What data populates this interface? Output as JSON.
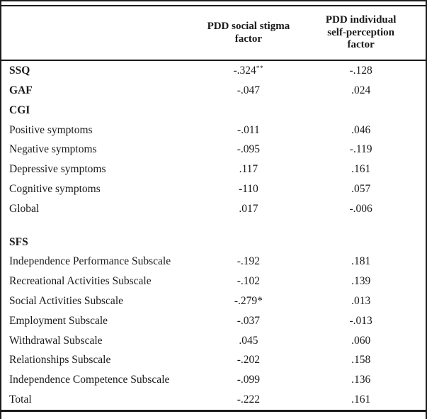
{
  "meta": {
    "background_color": "#ffffff",
    "border_color": "#1c1c1c",
    "text_color": "#1a1a1a"
  },
  "table": {
    "header": {
      "measure_col": "",
      "col1": "PDD social stigma\nfactor",
      "col2": "PDD individual\nself-perception\nfactor"
    },
    "rows": [
      {
        "label": "SSQ",
        "bold": true,
        "v1": "-.324",
        "v1_sup": "**",
        "v2": "-.128"
      },
      {
        "label": "GAF",
        "bold": true,
        "v1": "-.047",
        "v1_sup": "",
        "v2": ".024"
      },
      {
        "label": "CGI",
        "bold": true,
        "v1": "",
        "v1_sup": "",
        "v2": ""
      },
      {
        "label": "Positive symptoms",
        "bold": false,
        "v1": "-.011",
        "v1_sup": "",
        "v2": ".046"
      },
      {
        "label": "Negative symptoms",
        "bold": false,
        "v1": "-.095",
        "v1_sup": "",
        "v2": "-.119"
      },
      {
        "label": "Depressive symptoms",
        "bold": false,
        "v1": ".117",
        "v1_sup": "",
        "v2": ".161"
      },
      {
        "label": "Cognitive symptoms",
        "bold": false,
        "v1": "-110",
        "v1_sup": "",
        "v2": ".057"
      },
      {
        "label": "Global",
        "bold": false,
        "v1": ".017",
        "v1_sup": "",
        "v2": "-.006"
      },
      {
        "label": "",
        "bold": false,
        "spacer": true,
        "v1": "",
        "v1_sup": "",
        "v2": ""
      },
      {
        "label": "SFS",
        "bold": true,
        "v1": "",
        "v1_sup": "",
        "v2": ""
      },
      {
        "label": "Independence Performance Subscale",
        "bold": false,
        "v1": "-.192",
        "v1_sup": "",
        "v2": ".181"
      },
      {
        "label": "Recreational Activities Subscale",
        "bold": false,
        "v1": "-.102",
        "v1_sup": "",
        "v2": ".139"
      },
      {
        "label": "Social Activities Subscale",
        "bold": false,
        "v1": "-.279*",
        "v1_sup": "",
        "v2": ".013"
      },
      {
        "label": "Employment Subscale",
        "bold": false,
        "v1": "-.037",
        "v1_sup": "",
        "v2": "-.013"
      },
      {
        "label": "Withdrawal Subscale",
        "bold": false,
        "v1": ".045",
        "v1_sup": "",
        "v2": ".060"
      },
      {
        "label": "Relationships Subscale",
        "bold": false,
        "v1": "-.202",
        "v1_sup": "",
        "v2": ".158"
      },
      {
        "label": "Independence Competence Subscale",
        "bold": false,
        "v1": "-.099",
        "v1_sup": "",
        "v2": ".136"
      },
      {
        "label": "Total",
        "bold": false,
        "v1": "-.222",
        "v1_sup": "",
        "v2": ".161"
      }
    ]
  }
}
